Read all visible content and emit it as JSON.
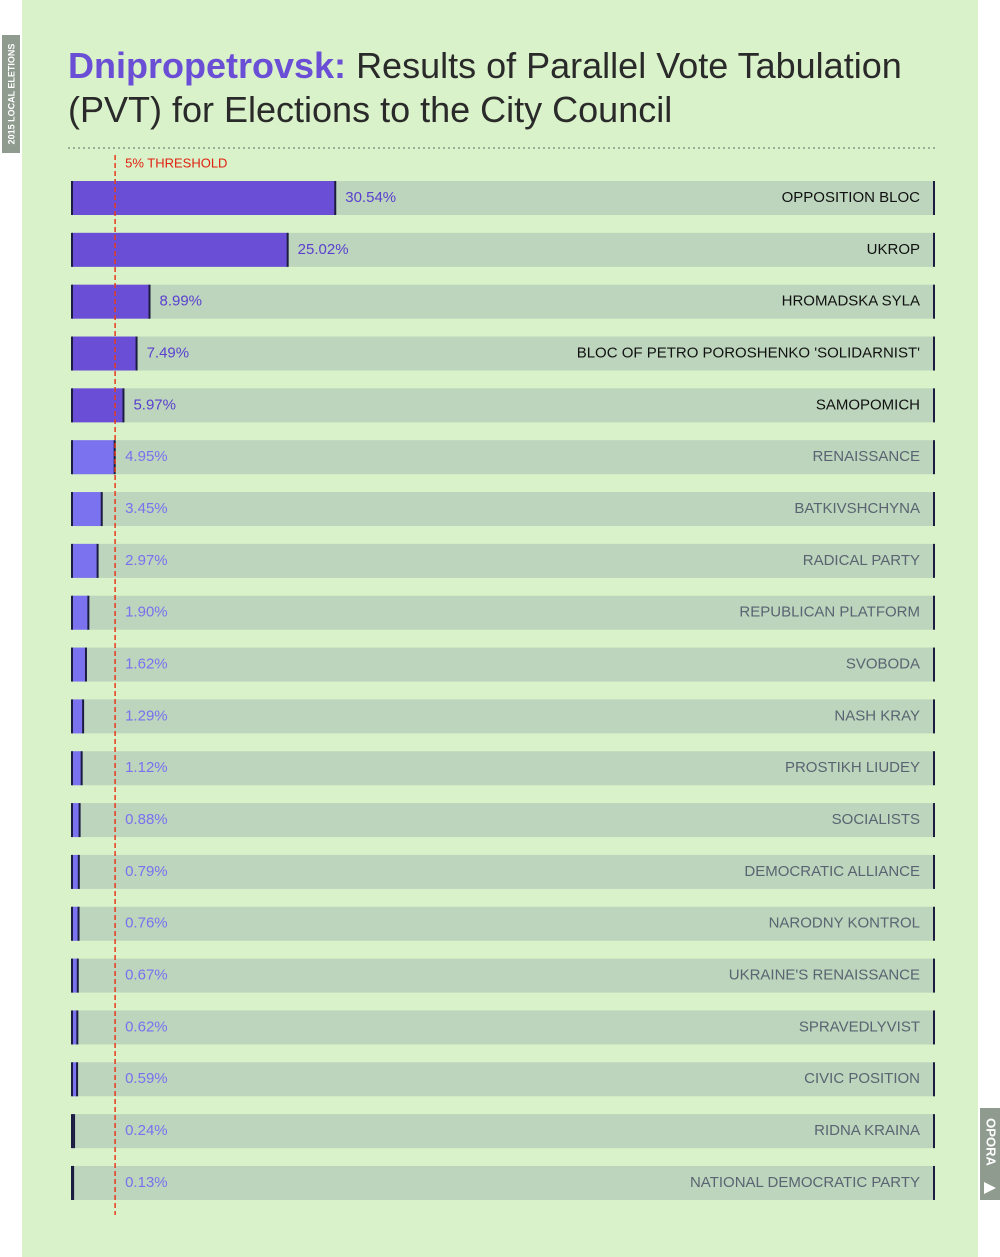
{
  "side_label": "2015 LOCAL ELETIONS",
  "logo": "OPORA",
  "chart_data": {
    "type": "hbar",
    "title_place": "Dnipropetrovsk:",
    "title": "Results of Parallel Vote Tabulation (PVT) for Elections to the City Council",
    "categories": [
      "OPPOSITION BLOC",
      "UKROP",
      "HROMADSKA SYLA",
      "BLOC OF PETRO POROSHENKO 'SOLIDARNIST'",
      "SAMOPOMICH",
      "RENAISSANCE",
      "BATKIVSHCHYNA",
      "RADICAL PARTY",
      "REPUBLICAN PLATFORM",
      "SVOBODA",
      "NASH KRAY",
      "PROSTIKH LIUDEY",
      "SOCIALISTS",
      "DEMOCRATIC ALLIANCE",
      "NARODNY KONTROL",
      "UKRAINE'S RENAISSANCE",
      "SPRAVEDLYVIST",
      "CIVIC POSITION",
      "RIDNA KRAINA",
      "NATIONAL DEMOCRATIC PARTY"
    ],
    "values": [
      30.54,
      25.02,
      8.99,
      7.49,
      5.97,
      4.95,
      3.45,
      2.97,
      1.9,
      1.62,
      1.29,
      1.12,
      0.88,
      0.79,
      0.76,
      0.67,
      0.62,
      0.59,
      0.24,
      0.13
    ],
    "value_labels": [
      "30.54%",
      "25.02%",
      "8.99%",
      "7.49%",
      "5.97%",
      "4.95%",
      "3.45%",
      "2.97%",
      "1.90%",
      "1.62%",
      "1.29%",
      "1.12%",
      "0.88%",
      "0.79%",
      "0.76%",
      "0.67%",
      "0.62%",
      "0.59%",
      "0.24%",
      "0.13%"
    ],
    "xlim": [
      0,
      100
    ],
    "threshold": {
      "value": 5,
      "label": "5% THRESHOLD"
    },
    "color": "#6a4fd6",
    "color_below": "#7b72f0",
    "track_color": "#bcd5bc"
  }
}
